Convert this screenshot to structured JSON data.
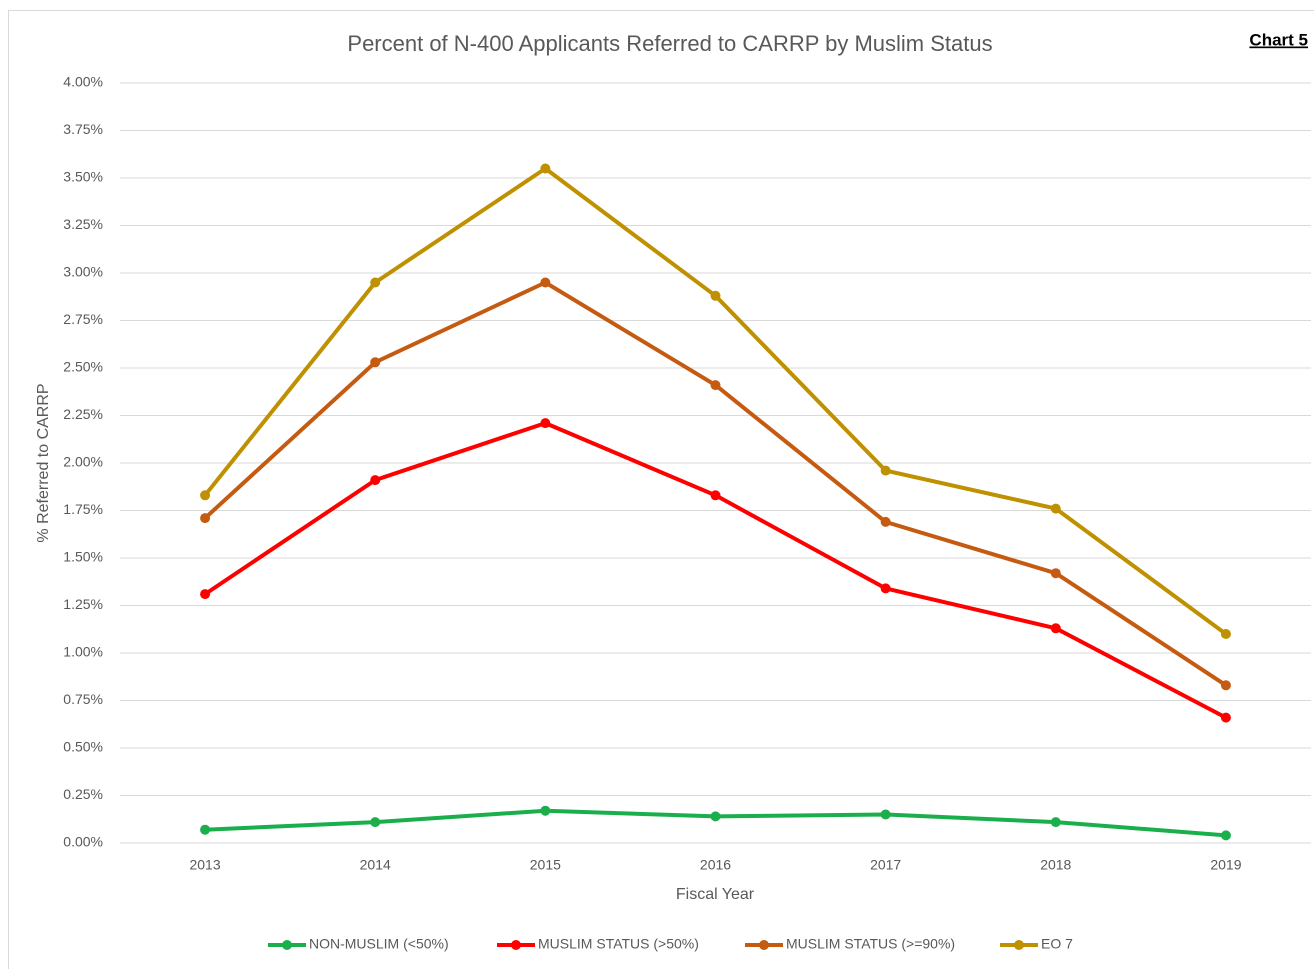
{
  "chart_data": {
    "type": "line",
    "title": "Percent of N-400 Applicants Referred to CARRP by Muslim Status",
    "annotation": "Chart 5",
    "x_label": "Fiscal Year",
    "y_label": "% Referred to CARRP",
    "categories": [
      "2013",
      "2014",
      "2015",
      "2016",
      "2017",
      "2018",
      "2019"
    ],
    "series": [
      {
        "name": "NON-MUSLIM (<50%)",
        "color": "#1aaf4b",
        "values": [
          0.07,
          0.11,
          0.17,
          0.14,
          0.15,
          0.11,
          0.04
        ]
      },
      {
        "name": "MUSLIM STATUS (>50%)",
        "color": "#ff0000",
        "values": [
          1.31,
          1.91,
          2.21,
          1.83,
          1.34,
          1.13,
          0.66
        ]
      },
      {
        "name": "MUSLIM STATUS (>=90%)",
        "color": "#c55a11",
        "values": [
          1.71,
          2.53,
          2.95,
          2.41,
          1.69,
          1.42,
          0.83
        ]
      },
      {
        "name": "EO 7",
        "color": "#bf9000",
        "values": [
          1.83,
          2.95,
          3.55,
          2.88,
          1.96,
          1.76,
          1.1
        ]
      }
    ],
    "ylim": [
      0,
      4
    ],
    "yticks": [
      {
        "value": 0,
        "label": "0.00%"
      },
      {
        "value": 0.25,
        "label": "0.25%"
      },
      {
        "value": 0.5,
        "label": "0.50%"
      },
      {
        "value": 0.75,
        "label": "0.75%"
      },
      {
        "value": 1,
        "label": "1.00%"
      },
      {
        "value": 1.25,
        "label": "1.25%"
      },
      {
        "value": 1.5,
        "label": "1.50%"
      },
      {
        "value": 1.75,
        "label": "1.75%"
      },
      {
        "value": 2,
        "label": "2.00%"
      },
      {
        "value": 2.25,
        "label": "2.25%"
      },
      {
        "value": 2.5,
        "label": "2.50%"
      },
      {
        "value": 2.75,
        "label": "2.75%"
      },
      {
        "value": 3,
        "label": "3.00%"
      },
      {
        "value": 3.25,
        "label": "3.25%"
      },
      {
        "value": 3.5,
        "label": "3.50%"
      },
      {
        "value": 3.75,
        "label": "3.75%"
      },
      {
        "value": 4,
        "label": "4.00%"
      }
    ],
    "grid": true,
    "legend": "bottom"
  }
}
